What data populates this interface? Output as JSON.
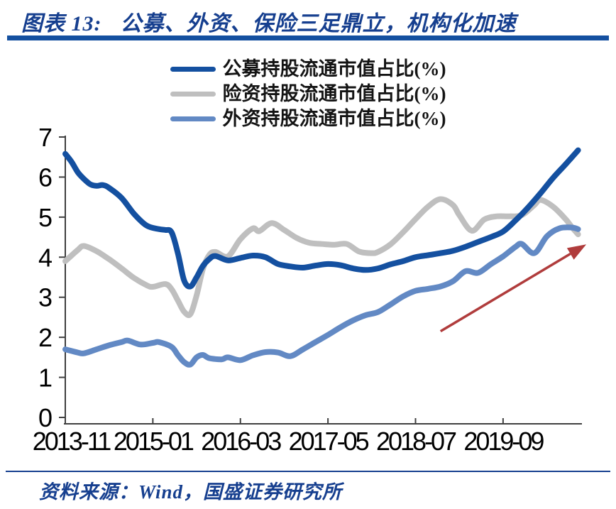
{
  "header": {
    "title_prefix": "图表 13:",
    "title_text": "公募、外资、保险三足鼎立，机构化加速"
  },
  "footer": {
    "source_label": "资料来源：Wind，国盛证券研究所"
  },
  "colors": {
    "accent_navy": "#163F8F",
    "divider_bar": "#1450A0",
    "axis": "#404040",
    "tick_label": "#000000",
    "arrow": "#B03C3C"
  },
  "chart_data": {
    "type": "line",
    "title": "",
    "xlabel": "",
    "ylabel": "",
    "grid": false,
    "legend_position": "top-center",
    "x_axis": {
      "unit": "month",
      "start": "2013-11",
      "end": "2020-09",
      "tick_interval_months": 14,
      "tick_labels": [
        "2013-11",
        "2015-01",
        "2016-03",
        "2017-05",
        "2018-07",
        "2019-09"
      ]
    },
    "y_axis": {
      "min": 0,
      "max": 7,
      "tick_step": 1,
      "tick_labels": [
        "0",
        "1",
        "2",
        "3",
        "4",
        "5",
        "6",
        "7"
      ]
    },
    "series": [
      {
        "name": "公募持股流通市值占比(%)",
        "color": "#1450A0",
        "points": [
          [
            "2013-11",
            6.58
          ],
          [
            "2013-12",
            6.38
          ],
          [
            "2014-01",
            6.12
          ],
          [
            "2014-02",
            5.95
          ],
          [
            "2014-03",
            5.82
          ],
          [
            "2014-04",
            5.78
          ],
          [
            "2014-05",
            5.8
          ],
          [
            "2014-06",
            5.73
          ],
          [
            "2014-08",
            5.48
          ],
          [
            "2014-10",
            5.08
          ],
          [
            "2014-12",
            4.79
          ],
          [
            "2015-02",
            4.7
          ],
          [
            "2015-03",
            4.68
          ],
          [
            "2015-04",
            4.62
          ],
          [
            "2015-05",
            4.1
          ],
          [
            "2015-06",
            3.42
          ],
          [
            "2015-07",
            3.27
          ],
          [
            "2015-08",
            3.5
          ],
          [
            "2015-09",
            3.78
          ],
          [
            "2015-10",
            3.95
          ],
          [
            "2015-11",
            4.03
          ],
          [
            "2016-01",
            3.92
          ],
          [
            "2016-03",
            3.98
          ],
          [
            "2016-05",
            4.04
          ],
          [
            "2016-07",
            4.0
          ],
          [
            "2016-09",
            3.83
          ],
          [
            "2016-11",
            3.77
          ],
          [
            "2017-01",
            3.74
          ],
          [
            "2017-03",
            3.79
          ],
          [
            "2017-05",
            3.83
          ],
          [
            "2017-07",
            3.8
          ],
          [
            "2017-09",
            3.72
          ],
          [
            "2017-11",
            3.68
          ],
          [
            "2018-01",
            3.72
          ],
          [
            "2018-03",
            3.82
          ],
          [
            "2018-05",
            3.9
          ],
          [
            "2018-07",
            4.0
          ],
          [
            "2018-09",
            4.05
          ],
          [
            "2018-11",
            4.1
          ],
          [
            "2019-01",
            4.16
          ],
          [
            "2019-03",
            4.26
          ],
          [
            "2019-05",
            4.38
          ],
          [
            "2019-07",
            4.5
          ],
          [
            "2019-09",
            4.64
          ],
          [
            "2019-11",
            4.92
          ],
          [
            "2020-01",
            5.24
          ],
          [
            "2020-03",
            5.6
          ],
          [
            "2020-05",
            5.98
          ],
          [
            "2020-07",
            6.32
          ],
          [
            "2020-09",
            6.67
          ]
        ]
      },
      {
        "name": "险资持股流通市值占比(%)",
        "color": "#BFBFBF",
        "points": [
          [
            "2013-11",
            3.9
          ],
          [
            "2014-01",
            4.18
          ],
          [
            "2014-02",
            4.28
          ],
          [
            "2014-04",
            4.15
          ],
          [
            "2014-06",
            3.95
          ],
          [
            "2014-08",
            3.72
          ],
          [
            "2014-10",
            3.48
          ],
          [
            "2014-12",
            3.3
          ],
          [
            "2015-01",
            3.26
          ],
          [
            "2015-03",
            3.33
          ],
          [
            "2015-04",
            3.2
          ],
          [
            "2015-05",
            2.92
          ],
          [
            "2015-06",
            2.64
          ],
          [
            "2015-07",
            2.58
          ],
          [
            "2015-08",
            3.05
          ],
          [
            "2015-09",
            3.7
          ],
          [
            "2015-10",
            4.05
          ],
          [
            "2015-11",
            4.13
          ],
          [
            "2016-01",
            4.02
          ],
          [
            "2016-03",
            4.45
          ],
          [
            "2016-05",
            4.72
          ],
          [
            "2016-06",
            4.65
          ],
          [
            "2016-08",
            4.85
          ],
          [
            "2016-10",
            4.68
          ],
          [
            "2016-12",
            4.48
          ],
          [
            "2017-02",
            4.36
          ],
          [
            "2017-04",
            4.33
          ],
          [
            "2017-06",
            4.31
          ],
          [
            "2017-08",
            4.33
          ],
          [
            "2017-10",
            4.14
          ],
          [
            "2017-12",
            4.1
          ],
          [
            "2018-01",
            4.13
          ],
          [
            "2018-03",
            4.32
          ],
          [
            "2018-05",
            4.62
          ],
          [
            "2018-07",
            4.95
          ],
          [
            "2018-09",
            5.26
          ],
          [
            "2018-11",
            5.45
          ],
          [
            "2019-01",
            5.3
          ],
          [
            "2019-02",
            5.05
          ],
          [
            "2019-04",
            4.66
          ],
          [
            "2019-06",
            4.94
          ],
          [
            "2019-08",
            5.02
          ],
          [
            "2019-10",
            5.02
          ],
          [
            "2019-12",
            5.05
          ],
          [
            "2020-02",
            5.3
          ],
          [
            "2020-03",
            5.43
          ],
          [
            "2020-05",
            5.26
          ],
          [
            "2020-07",
            4.95
          ],
          [
            "2020-08",
            4.75
          ],
          [
            "2020-09",
            4.57
          ]
        ]
      },
      {
        "name": "外资持股流通市值占比(%)",
        "color": "#6289C4",
        "points": [
          [
            "2013-11",
            1.7
          ],
          [
            "2014-01",
            1.62
          ],
          [
            "2014-02",
            1.6
          ],
          [
            "2014-04",
            1.7
          ],
          [
            "2014-06",
            1.8
          ],
          [
            "2014-08",
            1.88
          ],
          [
            "2014-09",
            1.92
          ],
          [
            "2014-11",
            1.82
          ],
          [
            "2015-01",
            1.86
          ],
          [
            "2015-02",
            1.88
          ],
          [
            "2015-04",
            1.76
          ],
          [
            "2015-05",
            1.56
          ],
          [
            "2015-06",
            1.38
          ],
          [
            "2015-07",
            1.32
          ],
          [
            "2015-08",
            1.5
          ],
          [
            "2015-09",
            1.56
          ],
          [
            "2015-10",
            1.48
          ],
          [
            "2015-12",
            1.45
          ],
          [
            "2016-01",
            1.5
          ],
          [
            "2016-03",
            1.43
          ],
          [
            "2016-05",
            1.55
          ],
          [
            "2016-07",
            1.63
          ],
          [
            "2016-09",
            1.62
          ],
          [
            "2016-11",
            1.53
          ],
          [
            "2017-01",
            1.7
          ],
          [
            "2017-03",
            1.88
          ],
          [
            "2017-05",
            2.06
          ],
          [
            "2017-07",
            2.25
          ],
          [
            "2017-09",
            2.42
          ],
          [
            "2017-11",
            2.55
          ],
          [
            "2018-01",
            2.63
          ],
          [
            "2018-03",
            2.82
          ],
          [
            "2018-05",
            3.02
          ],
          [
            "2018-07",
            3.16
          ],
          [
            "2018-09",
            3.21
          ],
          [
            "2018-11",
            3.27
          ],
          [
            "2019-01",
            3.4
          ],
          [
            "2019-03",
            3.65
          ],
          [
            "2019-05",
            3.61
          ],
          [
            "2019-07",
            3.82
          ],
          [
            "2019-09",
            4.02
          ],
          [
            "2019-11",
            4.26
          ],
          [
            "2019-12",
            4.33
          ],
          [
            "2020-02",
            4.1
          ],
          [
            "2020-04",
            4.52
          ],
          [
            "2020-06",
            4.72
          ],
          [
            "2020-08",
            4.74
          ],
          [
            "2020-09",
            4.7
          ]
        ]
      }
    ],
    "annotations": [
      {
        "type": "arrow",
        "color": "#B03C3C",
        "from": {
          "month": 60,
          "value": 2.15
        },
        "to": {
          "month": 83.3,
          "value": 4.32
        }
      }
    ]
  }
}
